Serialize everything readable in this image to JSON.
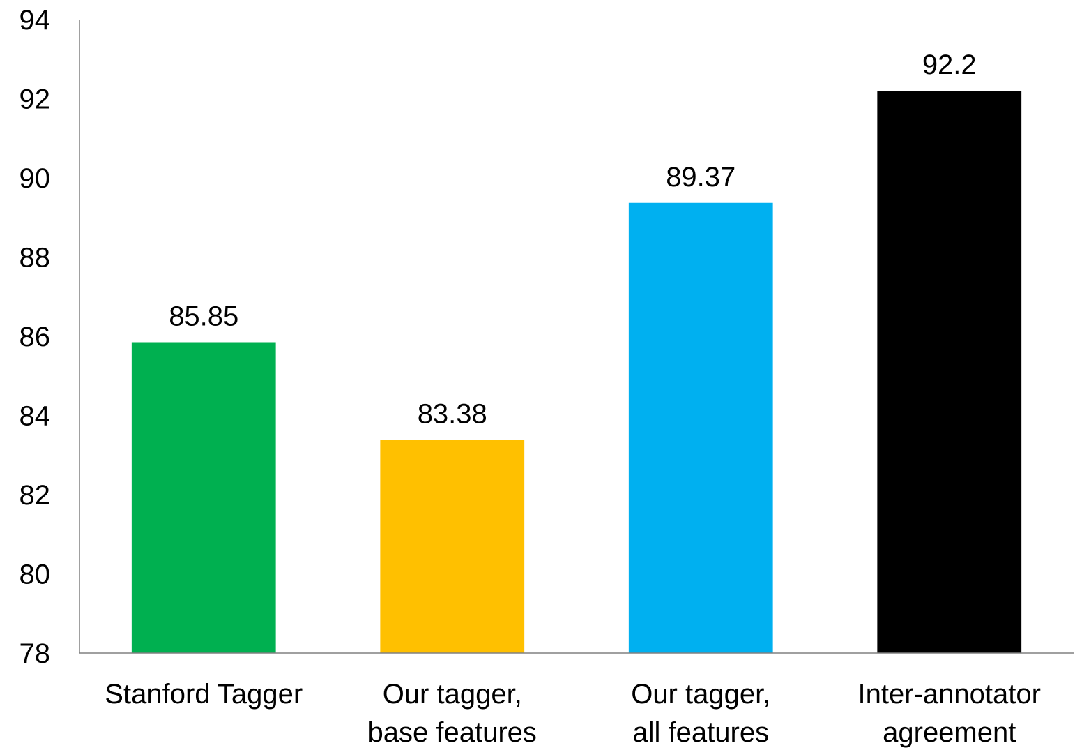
{
  "chart_data": {
    "type": "bar",
    "title": "",
    "xlabel": "",
    "ylabel": "",
    "ylim": [
      78,
      94
    ],
    "yticks": [
      78,
      80,
      82,
      84,
      86,
      88,
      90,
      92,
      94
    ],
    "grid": false,
    "legend": "none",
    "categories": [
      {
        "lines": [
          "Stanford Tagger"
        ]
      },
      {
        "lines": [
          "Our tagger,",
          "base features"
        ]
      },
      {
        "lines": [
          "Our tagger,",
          "all features"
        ]
      },
      {
        "lines": [
          "Inter-annotator",
          "agreement"
        ]
      }
    ],
    "values": [
      85.85,
      83.38,
      89.37,
      92.2
    ],
    "data_labels": [
      "85.85",
      "83.38",
      "89.37",
      "92.2"
    ],
    "colors": [
      "#00B050",
      "#FFC000",
      "#00B0F0",
      "#000000"
    ]
  }
}
